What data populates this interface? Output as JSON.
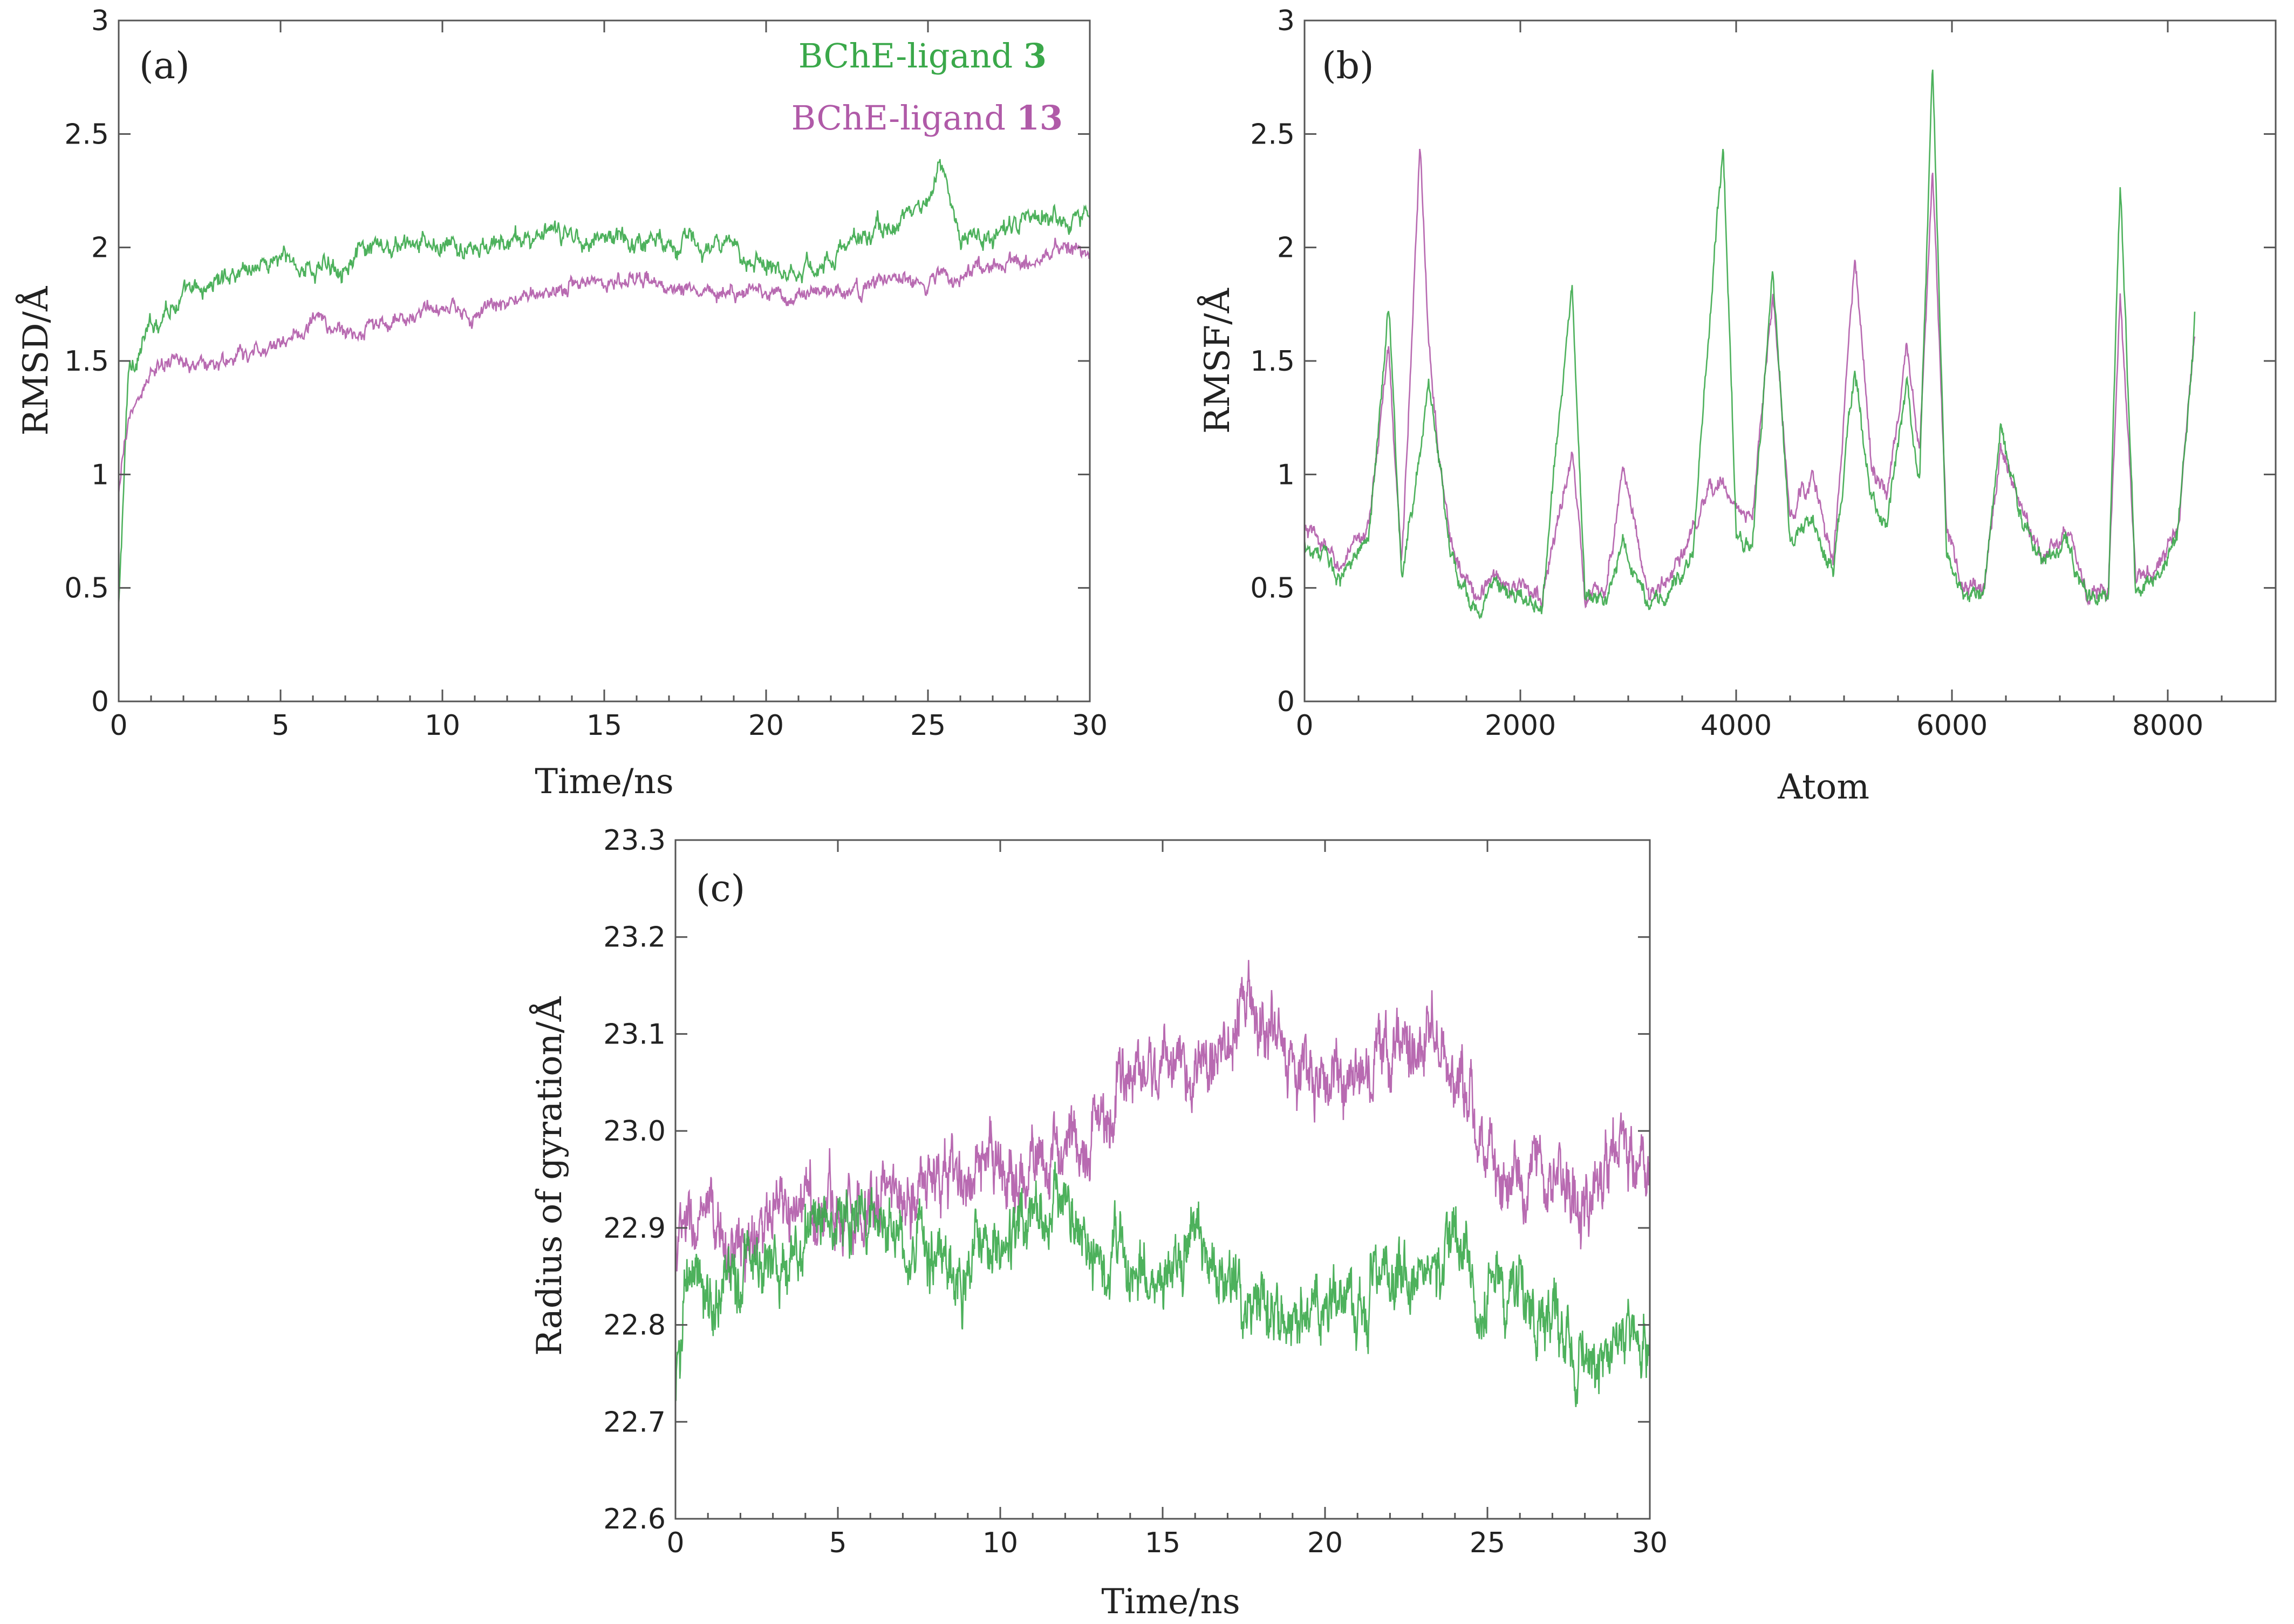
{
  "chart_data": [
    {
      "id": "a",
      "type": "line",
      "panel_label": "(a)",
      "title": "",
      "xlabel": "Time/ns",
      "ylabel": "RMSD/Å",
      "xlim": [
        0,
        30
      ],
      "ylim": [
        0,
        3
      ],
      "x_ticks": [
        "0",
        "5",
        "10",
        "15",
        "20",
        "25",
        "30"
      ],
      "y_ticks": [
        "0",
        "0.5",
        "1",
        "1.5",
        "2",
        "2.5",
        "3"
      ],
      "legend": [
        {
          "label": "BChE-ligand 3",
          "label_prefix": "BChE-ligand ",
          "label_number": "3",
          "color": "#3aa84a"
        },
        {
          "label": "BChE-ligand 13",
          "label_prefix": "BChE-ligand ",
          "label_number": "13",
          "color": "#b05aa8"
        }
      ],
      "legend_position": "top-right",
      "series": [
        {
          "name": "BChE-ligand 3",
          "color": "#3aa84a",
          "x": [
            0,
            0.3,
            0.8,
            1.5,
            2.5,
            3.5,
            5,
            6,
            7,
            8,
            9,
            10,
            11,
            12,
            13,
            14,
            15,
            16,
            17,
            18,
            19,
            20,
            21,
            22,
            23,
            24,
            25,
            25.3,
            26,
            27,
            28,
            29,
            30
          ],
          "y": [
            0.4,
            1.45,
            1.6,
            1.75,
            1.8,
            1.9,
            1.95,
            1.9,
            1.95,
            1.98,
            2.0,
            2.0,
            1.98,
            2.02,
            2.05,
            2.05,
            2.05,
            2.03,
            2.05,
            2.0,
            1.98,
            1.95,
            1.9,
            1.95,
            2.05,
            2.1,
            2.2,
            2.38,
            2.05,
            2.05,
            2.1,
            2.15,
            2.15
          ],
          "noise": 0.05
        },
        {
          "name": "BChE-ligand 13",
          "color": "#b05aa8",
          "x": [
            0,
            0.3,
            1,
            2,
            3,
            4,
            5,
            6,
            7,
            8,
            9,
            10,
            11,
            12,
            13,
            14,
            15,
            16,
            17,
            18,
            19,
            20,
            21,
            22,
            23,
            24,
            25,
            26,
            27,
            28,
            29,
            30
          ],
          "y": [
            0.9,
            1.25,
            1.45,
            1.5,
            1.48,
            1.52,
            1.58,
            1.68,
            1.62,
            1.65,
            1.7,
            1.72,
            1.7,
            1.75,
            1.8,
            1.85,
            1.85,
            1.85,
            1.83,
            1.82,
            1.82,
            1.82,
            1.8,
            1.8,
            1.82,
            1.85,
            1.85,
            1.88,
            1.92,
            1.95,
            1.98,
            2.0
          ],
          "noise": 0.04
        }
      ]
    },
    {
      "id": "b",
      "type": "line",
      "panel_label": "(b)",
      "title": "",
      "xlabel": "Atom",
      "ylabel": "RMSF/Å",
      "xlim": [
        0,
        9000
      ],
      "ylim": [
        0,
        3
      ],
      "x_ticks": [
        "0",
        "2000",
        "4000",
        "6000",
        "8000"
      ],
      "y_ticks": [
        "0",
        "0.5",
        "1",
        "1.5",
        "2",
        "2.5",
        "3"
      ],
      "series": [
        {
          "name": "BChE-ligand 13",
          "color": "#b05aa8",
          "x": [
            0,
            150,
            300,
            450,
            600,
            780,
            900,
            1070,
            1150,
            1250,
            1400,
            1600,
            1750,
            2000,
            2200,
            2480,
            2600,
            2800,
            2950,
            3200,
            3400,
            3600,
            3880,
            4000,
            4150,
            4340,
            4500,
            4700,
            4900,
            5100,
            5250,
            5400,
            5580,
            5700,
            5820,
            5950,
            6100,
            6300,
            6450,
            6650,
            6850,
            7050,
            7250,
            7450,
            7560,
            7700,
            7850,
            8000,
            8100,
            8250
          ],
          "y": [
            0.75,
            0.7,
            0.6,
            0.65,
            0.8,
            1.55,
            0.6,
            2.42,
            1.6,
            1.1,
            0.6,
            0.45,
            0.55,
            0.5,
            0.45,
            1.1,
            0.45,
            0.5,
            1.05,
            0.45,
            0.55,
            0.75,
            1.0,
            0.85,
            0.8,
            1.8,
            0.8,
            1.0,
            0.6,
            1.95,
            1.05,
            0.9,
            1.55,
            1.05,
            2.35,
            0.75,
            0.5,
            0.5,
            1.15,
            0.85,
            0.65,
            0.75,
            0.5,
            0.5,
            1.8,
            0.55,
            0.55,
            0.65,
            0.8,
            1.6
          ],
          "noise": 0.04
        },
        {
          "name": "BChE-ligand 3",
          "color": "#3aa84a",
          "x": [
            0,
            150,
            300,
            450,
            600,
            780,
            900,
            1070,
            1150,
            1250,
            1400,
            1600,
            1750,
            2000,
            2200,
            2480,
            2600,
            2800,
            2950,
            3200,
            3400,
            3600,
            3880,
            4000,
            4150,
            4340,
            4500,
            4700,
            4900,
            5100,
            5250,
            5400,
            5580,
            5700,
            5820,
            5950,
            6100,
            6300,
            6450,
            6650,
            6850,
            7050,
            7250,
            7450,
            7560,
            7700,
            7850,
            8000,
            8100,
            8250
          ],
          "y": [
            0.7,
            0.65,
            0.55,
            0.6,
            0.75,
            1.75,
            0.55,
            1.1,
            1.4,
            1.05,
            0.55,
            0.4,
            0.5,
            0.45,
            0.42,
            1.85,
            0.45,
            0.45,
            0.7,
            0.42,
            0.5,
            0.65,
            2.48,
            0.75,
            0.7,
            1.9,
            0.75,
            0.8,
            0.55,
            1.5,
            0.9,
            0.8,
            1.4,
            0.95,
            2.8,
            0.65,
            0.45,
            0.5,
            1.2,
            0.8,
            0.6,
            0.7,
            0.45,
            0.45,
            2.3,
            0.5,
            0.5,
            0.6,
            0.75,
            1.7
          ],
          "noise": 0.04
        }
      ]
    },
    {
      "id": "c",
      "type": "line",
      "panel_label": "(c)",
      "title": "",
      "xlabel": "Time/ns",
      "ylabel": "Radius of gyration/Å",
      "xlim": [
        0,
        30
      ],
      "ylim": [
        22.6,
        23.3
      ],
      "x_ticks": [
        "0",
        "5",
        "10",
        "15",
        "20",
        "25",
        "30"
      ],
      "y_ticks": [
        "22.6",
        "22.7",
        "22.8",
        "22.9",
        "23.0",
        "23.1",
        "23.2",
        "23.3"
      ],
      "series": [
        {
          "name": "BChE-ligand 13",
          "color": "#b05aa8",
          "x": [
            0,
            0.5,
            2,
            4,
            6,
            8,
            10,
            12,
            13,
            14,
            15,
            16,
            17,
            18,
            19,
            20,
            21,
            22,
            23,
            24,
            25,
            26,
            27,
            28,
            29,
            30
          ],
          "y": [
            22.88,
            22.9,
            22.88,
            22.92,
            22.93,
            22.95,
            22.95,
            22.98,
            23.0,
            23.05,
            23.08,
            23.05,
            23.1,
            23.12,
            23.08,
            23.05,
            23.05,
            23.08,
            23.1,
            23.07,
            22.98,
            22.95,
            22.95,
            22.92,
            22.98,
            22.95
          ],
          "noise": 0.035
        },
        {
          "name": "BChE-ligand 3",
          "color": "#3aa84a",
          "x": [
            0,
            0.3,
            1,
            2,
            4,
            6,
            8,
            10,
            11,
            12,
            13,
            14,
            15,
            16,
            17,
            18,
            19,
            20,
            21,
            22,
            23,
            24,
            25,
            26,
            27,
            28,
            29,
            30
          ],
          "y": [
            22.72,
            22.85,
            22.82,
            22.85,
            22.9,
            22.92,
            22.85,
            22.88,
            22.92,
            22.93,
            22.88,
            22.85,
            22.84,
            22.88,
            22.85,
            22.82,
            22.82,
            22.83,
            22.82,
            22.85,
            22.85,
            22.88,
            22.82,
            22.82,
            22.8,
            22.75,
            22.8,
            22.77
          ],
          "noise": 0.035
        }
      ]
    }
  ]
}
